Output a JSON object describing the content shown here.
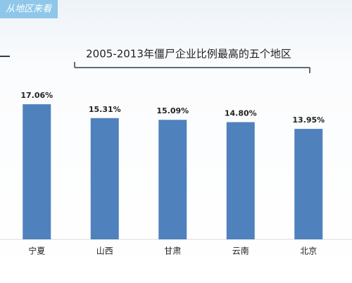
{
  "chart_data": {
    "type": "bar",
    "annotations": [
      "从地区来看"
    ],
    "title": "2005-2013年僵尸企业比例最高的五个地区",
    "categories": [
      "宁夏",
      "山西",
      "甘肃",
      "云南",
      "北京"
    ],
    "values": [
      17.06,
      15.31,
      15.09,
      14.8,
      13.95
    ],
    "value_labels": [
      "17.06%",
      "15.31%",
      "15.09%",
      "14.80%",
      "13.95%"
    ],
    "color": "#4f81bd"
  }
}
